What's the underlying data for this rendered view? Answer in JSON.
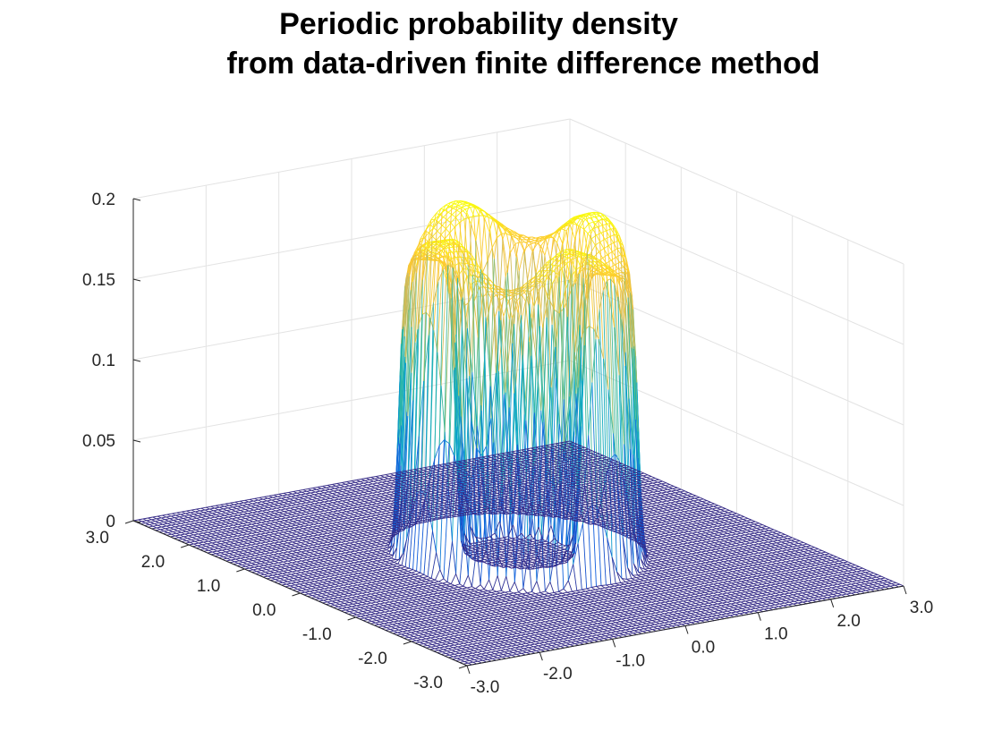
{
  "chart_data": {
    "type": "surface-mesh",
    "title": [
      "Periodic probability density",
      "from data-driven finite difference method"
    ],
    "xlabel": "",
    "ylabel": "",
    "zlabel": "",
    "xlim": [
      -3.0,
      3.0
    ],
    "ylim": [
      -3.0,
      3.0
    ],
    "zlim": [
      0,
      0.2
    ],
    "x_ticks": [
      -3.0,
      -2.0,
      -1.0,
      0.0,
      1.0,
      2.0,
      3.0
    ],
    "x_tick_labels": [
      "-3.0",
      "-2.0",
      "-1.0",
      "0.0",
      "1.0",
      "2.0",
      "3.0"
    ],
    "y_ticks": [
      -3.0,
      -2.0,
      -1.0,
      0.0,
      1.0,
      2.0,
      3.0
    ],
    "y_tick_labels": [
      "-3.0",
      "-2.0",
      "-1.0",
      "0.0",
      "1.0",
      "2.0",
      "3.0"
    ],
    "z_ticks": [
      0,
      0.05,
      0.1,
      0.15,
      0.2
    ],
    "z_tick_labels": [
      "0",
      "0.05",
      "0.1",
      "0.15",
      "0.2"
    ],
    "grid": true,
    "colormap": "parula",
    "colormap_colors": [
      "#352a87",
      "#0f5cdd",
      "#1481d6",
      "#06a4ca",
      "#2eb7a4",
      "#87bf77",
      "#d1bb59",
      "#fec832",
      "#f9fb0e"
    ],
    "surface": {
      "description": "ring-shaped density peaking at radius 1.0",
      "peak_radius": 1.0,
      "peak_value": 0.19,
      "ring_half_width": 0.32,
      "angular_ripple_amplitude": 0.012,
      "angular_ripple_frequency": 4
    },
    "grid_resolution": 91
  }
}
